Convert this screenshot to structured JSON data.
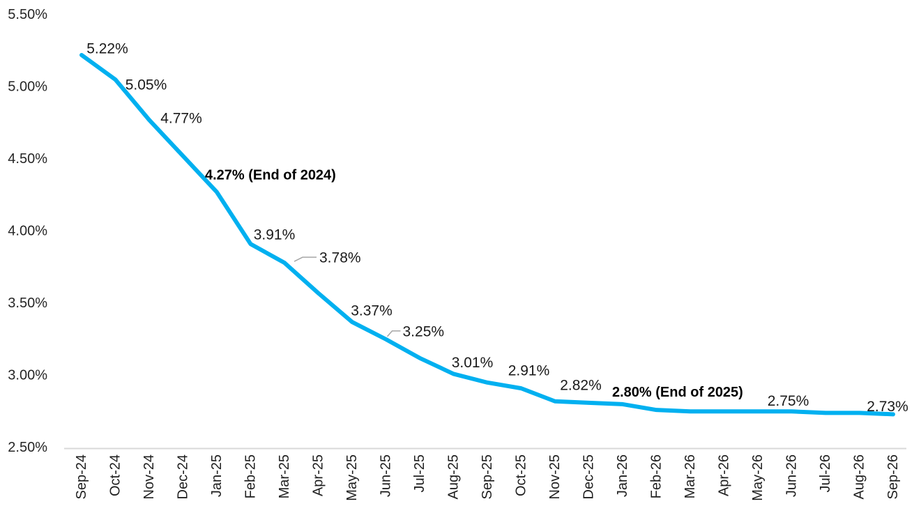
{
  "chart_data": {
    "type": "line",
    "title": "",
    "xlabel": "",
    "ylabel": "",
    "categories": [
      "Sep-24",
      "Oct-24",
      "Nov-24",
      "Dec-24",
      "Jan-25",
      "Feb-25",
      "Mar-25",
      "Apr-25",
      "May-25",
      "Jun-25",
      "Jul-25",
      "Aug-25",
      "Sep-25",
      "Oct-25",
      "Nov-25",
      "Dec-25",
      "Jan-26",
      "Feb-26",
      "Mar-26",
      "Apr-26",
      "May-26",
      "Jun-26",
      "Jul-26",
      "Aug-26",
      "Sep-26"
    ],
    "values": [
      5.22,
      5.05,
      4.77,
      4.52,
      4.27,
      3.91,
      3.78,
      3.57,
      3.37,
      3.25,
      3.12,
      3.01,
      2.95,
      2.91,
      2.82,
      2.81,
      2.8,
      2.76,
      2.75,
      2.75,
      2.75,
      2.75,
      2.74,
      2.74,
      2.73
    ],
    "ylim": [
      2.5,
      5.5
    ],
    "y_ticks": [
      {
        "value": 5.5,
        "label": "5.50%"
      },
      {
        "value": 5.0,
        "label": "5.00%"
      },
      {
        "value": 4.5,
        "label": "4.50%"
      },
      {
        "value": 4.0,
        "label": "4.00%"
      },
      {
        "value": 3.5,
        "label": "3.50%"
      },
      {
        "value": 3.0,
        "label": "3.00%"
      },
      {
        "value": 2.5,
        "label": "2.50%"
      }
    ],
    "grid": false,
    "legend": false,
    "data_labels": [
      {
        "index": 0,
        "text": "5.22%",
        "bold": false,
        "leader": false
      },
      {
        "index": 1,
        "text": "5.05%",
        "bold": false,
        "leader": false
      },
      {
        "index": 2,
        "text": "4.77%",
        "bold": false,
        "leader": false
      },
      {
        "index": 4,
        "text": "4.27% (End of 2024)",
        "bold": true,
        "leader": false
      },
      {
        "index": 5,
        "text": "3.91%",
        "bold": false,
        "leader": false
      },
      {
        "index": 6,
        "text": "3.78%",
        "bold": false,
        "leader": true
      },
      {
        "index": 8,
        "text": "3.37%",
        "bold": false,
        "leader": false
      },
      {
        "index": 9,
        "text": "3.25%",
        "bold": false,
        "leader": true
      },
      {
        "index": 11,
        "text": "3.01%",
        "bold": false,
        "leader": false
      },
      {
        "index": 13,
        "text": "2.91%",
        "bold": false,
        "leader": false
      },
      {
        "index": 14,
        "text": "2.82%",
        "bold": false,
        "leader": false
      },
      {
        "index": 16,
        "text": "2.80% (End of 2025)",
        "bold": true,
        "leader": false
      },
      {
        "index": 21,
        "text": "2.75%",
        "bold": false,
        "leader": false
      },
      {
        "index": 24,
        "text": "2.73%",
        "bold": false,
        "leader": false
      }
    ],
    "colors": {
      "line": "#00B0F0",
      "axis_line": "#D9D9D9",
      "tick_text": "#262626",
      "label_text": "#1a1a1a",
      "bold_label_text": "#000000",
      "leader_line": "#A6A6A6",
      "background": "#FFFFFF"
    }
  }
}
